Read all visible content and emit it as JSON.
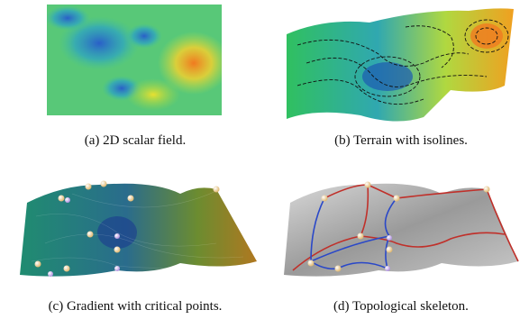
{
  "figures": [
    {
      "caption": "(a) 2D scalar field."
    },
    {
      "caption": "(b) Terrain with isolines."
    },
    {
      "caption": "(c) Gradient with critical points."
    },
    {
      "caption": "(d) Topological skeleton."
    }
  ]
}
